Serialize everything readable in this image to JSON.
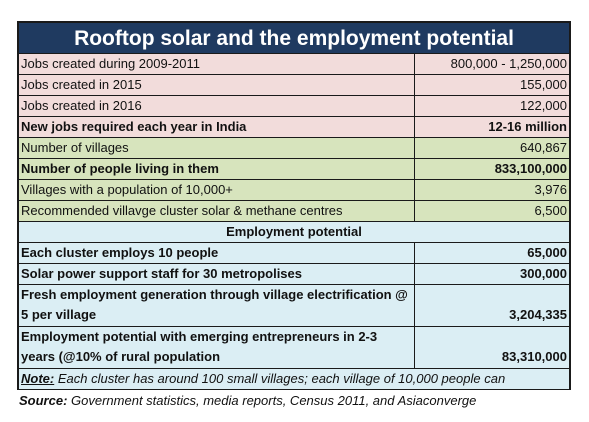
{
  "title": "Rooftop solar and the employment potential",
  "rows_top": [
    {
      "label": "Jobs created during 2009-2011",
      "value": "800,000 - 1,250,000",
      "style": "pink",
      "bold": false
    },
    {
      "label": "Jobs created in 2015",
      "value": "155,000",
      "style": "pink",
      "bold": false
    },
    {
      "label": "Jobs created in 2016",
      "value": "122,000",
      "style": "pink",
      "bold": false
    },
    {
      "label": "New jobs required each year  in India",
      "value": "12-16 million",
      "style": "pink",
      "bold": true
    },
    {
      "label": "Number of villages",
      "value": "640,867",
      "style": "green",
      "bold": false
    },
    {
      "label": "Number of people living in them",
      "value": "833,100,000",
      "style": "green",
      "bold": true
    },
    {
      "label": "Villages with a population of 10,000+",
      "value": "3,976",
      "style": "green",
      "bold": false
    },
    {
      "label": "Recommended villavge cluster solar & methane centres",
      "value": "6,500",
      "style": "green",
      "bold": false
    }
  ],
  "section_header": "Employment potential",
  "rows_employment": [
    {
      "label": "Each cluster employs 10 people",
      "value": "65,000"
    },
    {
      "label": "Solar power support staff for 30 metropolises",
      "value": "300,000"
    }
  ],
  "rows_employment_tall": [
    {
      "label": "Fresh employment generation through village electrification @ 5 per village",
      "value": "3,204,335"
    },
    {
      "label": "Employment potential with emerging entrepreneurs  in 2-3 years (@10% of rural population",
      "value": "83,310,000"
    }
  ],
  "note": {
    "prefix": "Note:",
    "text": " Each cluster has around 100 small villages; each village of 10,000 people can"
  },
  "source": {
    "prefix": "Source:",
    "text": "  Government statistics, media reports, Census 2011, and Asiaconverge"
  },
  "colors": {
    "title_bg": "#1f3a60",
    "pink": "#f2dcdb",
    "green": "#d7e4bd",
    "blue": "#dbeef4"
  }
}
